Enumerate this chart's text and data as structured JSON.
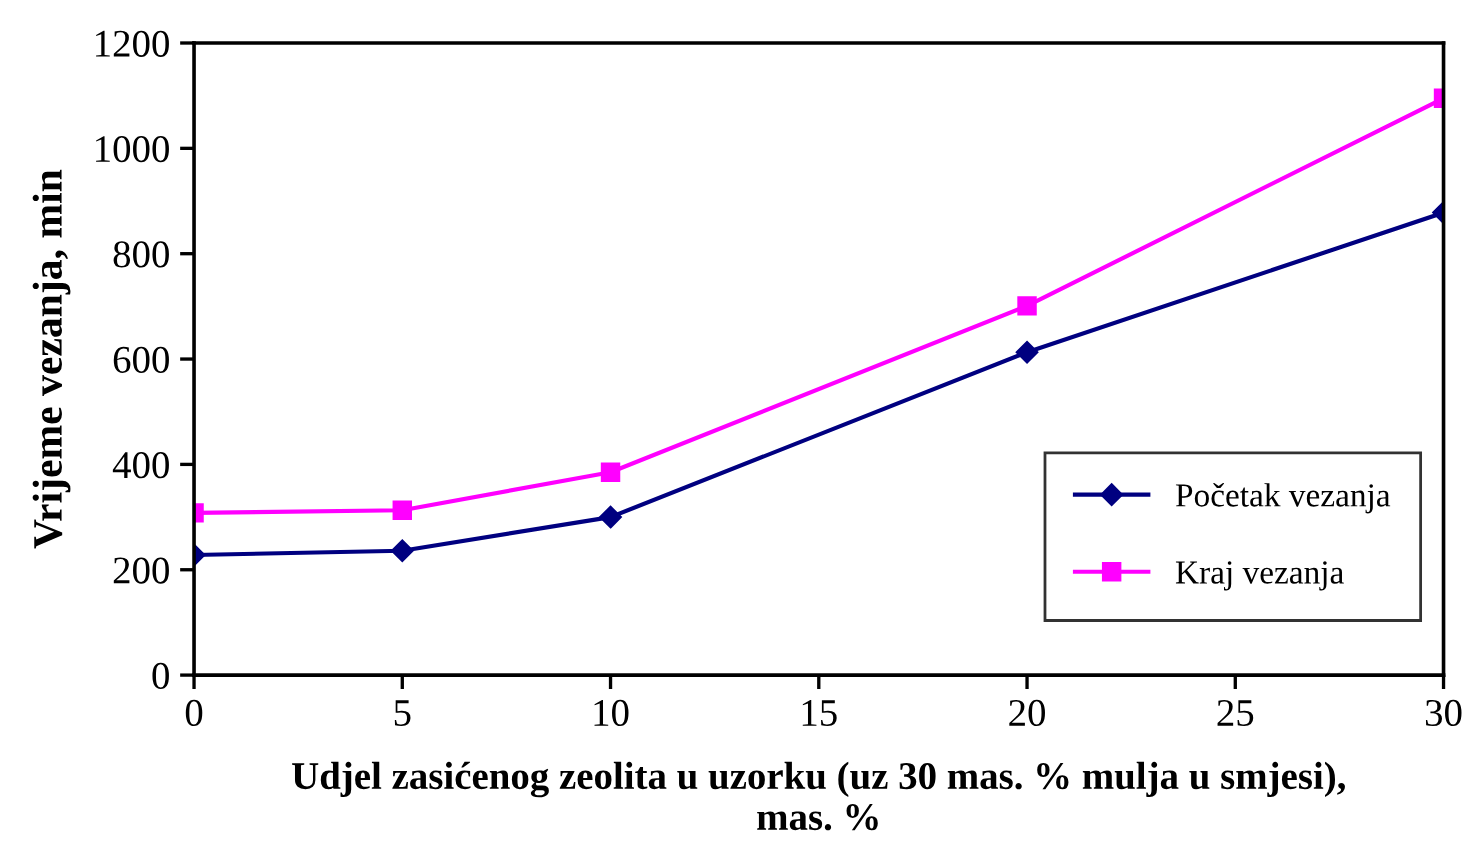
{
  "chart_data": {
    "type": "line",
    "xlabel": "Udjel zasićenog zeolita u uzorku (uz 30 mas. % mulja u smjesi),\nmas. %",
    "ylabel": "Vrijeme vezanja, min",
    "x": [
      0,
      5,
      10,
      20,
      30
    ],
    "series": [
      {
        "name": "Početak vezanja",
        "color": "#000080",
        "marker": "diamond",
        "values": [
          228,
          236,
          300,
          613,
          878
        ]
      },
      {
        "name": "Kraj vezanja",
        "color": "#ff00ff",
        "marker": "square",
        "values": [
          308,
          313,
          385,
          701,
          1095
        ]
      }
    ],
    "xlim": [
      0,
      30
    ],
    "xticks": [
      0,
      5,
      10,
      15,
      20,
      25,
      30
    ],
    "ylim": [
      0,
      1200
    ],
    "yticks": [
      0,
      200,
      400,
      600,
      800,
      1000,
      1200
    ],
    "grid": false,
    "legend": "bottom right",
    "line_style": "solid"
  }
}
